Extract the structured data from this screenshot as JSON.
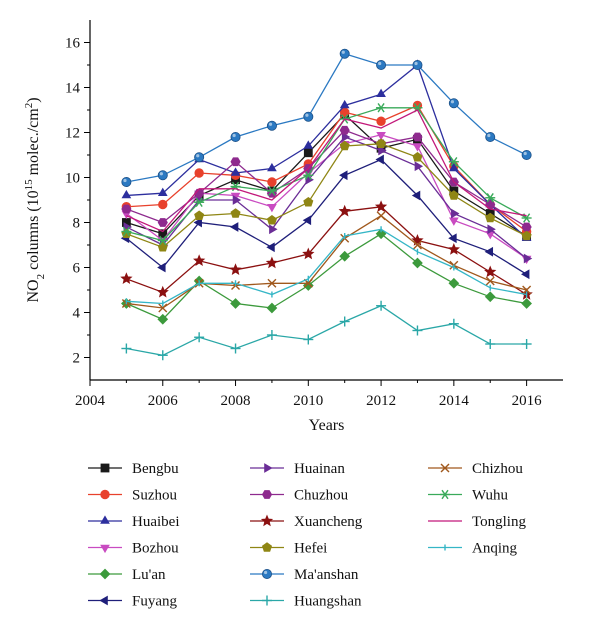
{
  "chart_data": {
    "type": "line",
    "xlabel": "Years",
    "ylabel": {
      "prefix": "NO",
      "sub": "2",
      "mid": " columns (10",
      "sup": "15",
      "post": " molec./cm",
      "sup2": "2",
      "end": ")"
    },
    "xlim": [
      2004,
      2017
    ],
    "ylim": [
      1,
      17
    ],
    "xticks": [
      2004,
      2006,
      2008,
      2010,
      2012,
      2014,
      2016
    ],
    "yticks": [
      2,
      4,
      6,
      8,
      10,
      12,
      14,
      16
    ],
    "x": [
      2005,
      2006,
      2007,
      2008,
      2009,
      2010,
      2011,
      2012,
      2013,
      2014,
      2015,
      2016
    ],
    "legend_placement": "bottom",
    "series": [
      {
        "name": "Bengbu",
        "color": "#1a1a1a",
        "marker": "square",
        "values": [
          8.0,
          7.5,
          9.2,
          9.9,
          9.4,
          11.1,
          12.8,
          11.3,
          11.7,
          9.4,
          8.4,
          7.4
        ]
      },
      {
        "name": "Suzhou",
        "color": "#e8412c",
        "marker": "circle",
        "values": [
          8.7,
          8.8,
          10.2,
          10.1,
          9.8,
          10.6,
          12.9,
          12.5,
          13.2,
          10.5,
          8.8,
          7.6
        ]
      },
      {
        "name": "Huaibei",
        "color": "#2d2f9e",
        "marker": "triangle-up",
        "values": [
          9.2,
          9.3,
          10.8,
          10.2,
          10.4,
          11.4,
          13.2,
          13.7,
          15.0,
          10.4,
          8.8,
          7.3
        ]
      },
      {
        "name": "Bozhou",
        "color": "#c94bc1",
        "marker": "triangle-down",
        "values": [
          8.4,
          7.2,
          9.3,
          9.2,
          8.7,
          10.2,
          11.5,
          11.9,
          11.4,
          8.1,
          7.5,
          6.4
        ]
      },
      {
        "name": "Lu'an",
        "color": "#3c9a3c",
        "marker": "diamond",
        "values": [
          4.4,
          3.7,
          5.4,
          4.4,
          4.2,
          5.2,
          6.5,
          7.5,
          6.2,
          5.3,
          4.7,
          4.4
        ]
      },
      {
        "name": "Fuyang",
        "color": "#1f1f7a",
        "marker": "triangle-left",
        "values": [
          7.3,
          6.0,
          8.0,
          7.8,
          6.9,
          8.1,
          10.1,
          10.8,
          9.2,
          7.3,
          6.7,
          5.7
        ]
      },
      {
        "name": "Huainan",
        "color": "#6a2d96",
        "marker": "triangle-right",
        "values": [
          7.8,
          7.0,
          9.0,
          9.0,
          7.7,
          9.9,
          11.8,
          11.2,
          10.5,
          8.4,
          7.7,
          6.4
        ]
      },
      {
        "name": "Chuzhou",
        "color": "#8e2a8e",
        "marker": "hexagon",
        "values": [
          8.6,
          8.0,
          9.3,
          10.7,
          9.3,
          10.4,
          12.1,
          11.5,
          11.8,
          9.8,
          8.8,
          7.8
        ]
      },
      {
        "name": "Xuancheng",
        "color": "#8b1010",
        "marker": "star",
        "values": [
          5.5,
          4.9,
          6.3,
          5.9,
          6.2,
          6.6,
          8.5,
          8.7,
          7.2,
          6.8,
          5.8,
          4.8
        ]
      },
      {
        "name": "Hefei",
        "color": "#8f8614",
        "marker": "pentagon",
        "values": [
          7.5,
          6.9,
          8.3,
          8.4,
          8.1,
          8.9,
          11.4,
          11.5,
          10.9,
          9.2,
          8.2,
          7.4
        ]
      },
      {
        "name": "Ma'anshan",
        "color": "#2b79c2",
        "marker": "sphere",
        "values": [
          9.8,
          10.1,
          10.9,
          11.8,
          12.3,
          12.7,
          15.5,
          15.0,
          15.0,
          13.3,
          11.8,
          11.0
        ]
      },
      {
        "name": "Huangshan",
        "color": "#2aa7a7",
        "marker": "plus",
        "values": [
          2.4,
          2.1,
          2.9,
          2.4,
          3.0,
          2.8,
          3.6,
          4.3,
          3.2,
          3.5,
          2.6,
          2.6
        ]
      },
      {
        "name": "Chizhou",
        "color": "#a0581c",
        "marker": "x",
        "values": [
          4.4,
          4.2,
          5.3,
          5.2,
          5.3,
          5.3,
          7.3,
          8.3,
          7.0,
          6.1,
          5.4,
          5.0
        ]
      },
      {
        "name": "Wuhu",
        "color": "#3aaa5a",
        "marker": "asterisk",
        "values": [
          7.6,
          7.2,
          8.9,
          9.6,
          9.4,
          10.1,
          12.6,
          13.1,
          13.1,
          10.7,
          9.1,
          8.2
        ]
      },
      {
        "name": "Tongling",
        "color": "#c2187a",
        "marker": "none",
        "values": [
          8.3,
          7.6,
          9.5,
          9.5,
          9.0,
          10.4,
          12.6,
          12.2,
          13.0,
          9.8,
          8.6,
          8.3
        ]
      },
      {
        "name": "Anqing",
        "color": "#35b6c6",
        "marker": "tick",
        "values": [
          4.5,
          4.4,
          5.3,
          5.3,
          4.8,
          5.5,
          7.4,
          7.7,
          6.7,
          6.0,
          5.1,
          4.8
        ]
      }
    ]
  }
}
